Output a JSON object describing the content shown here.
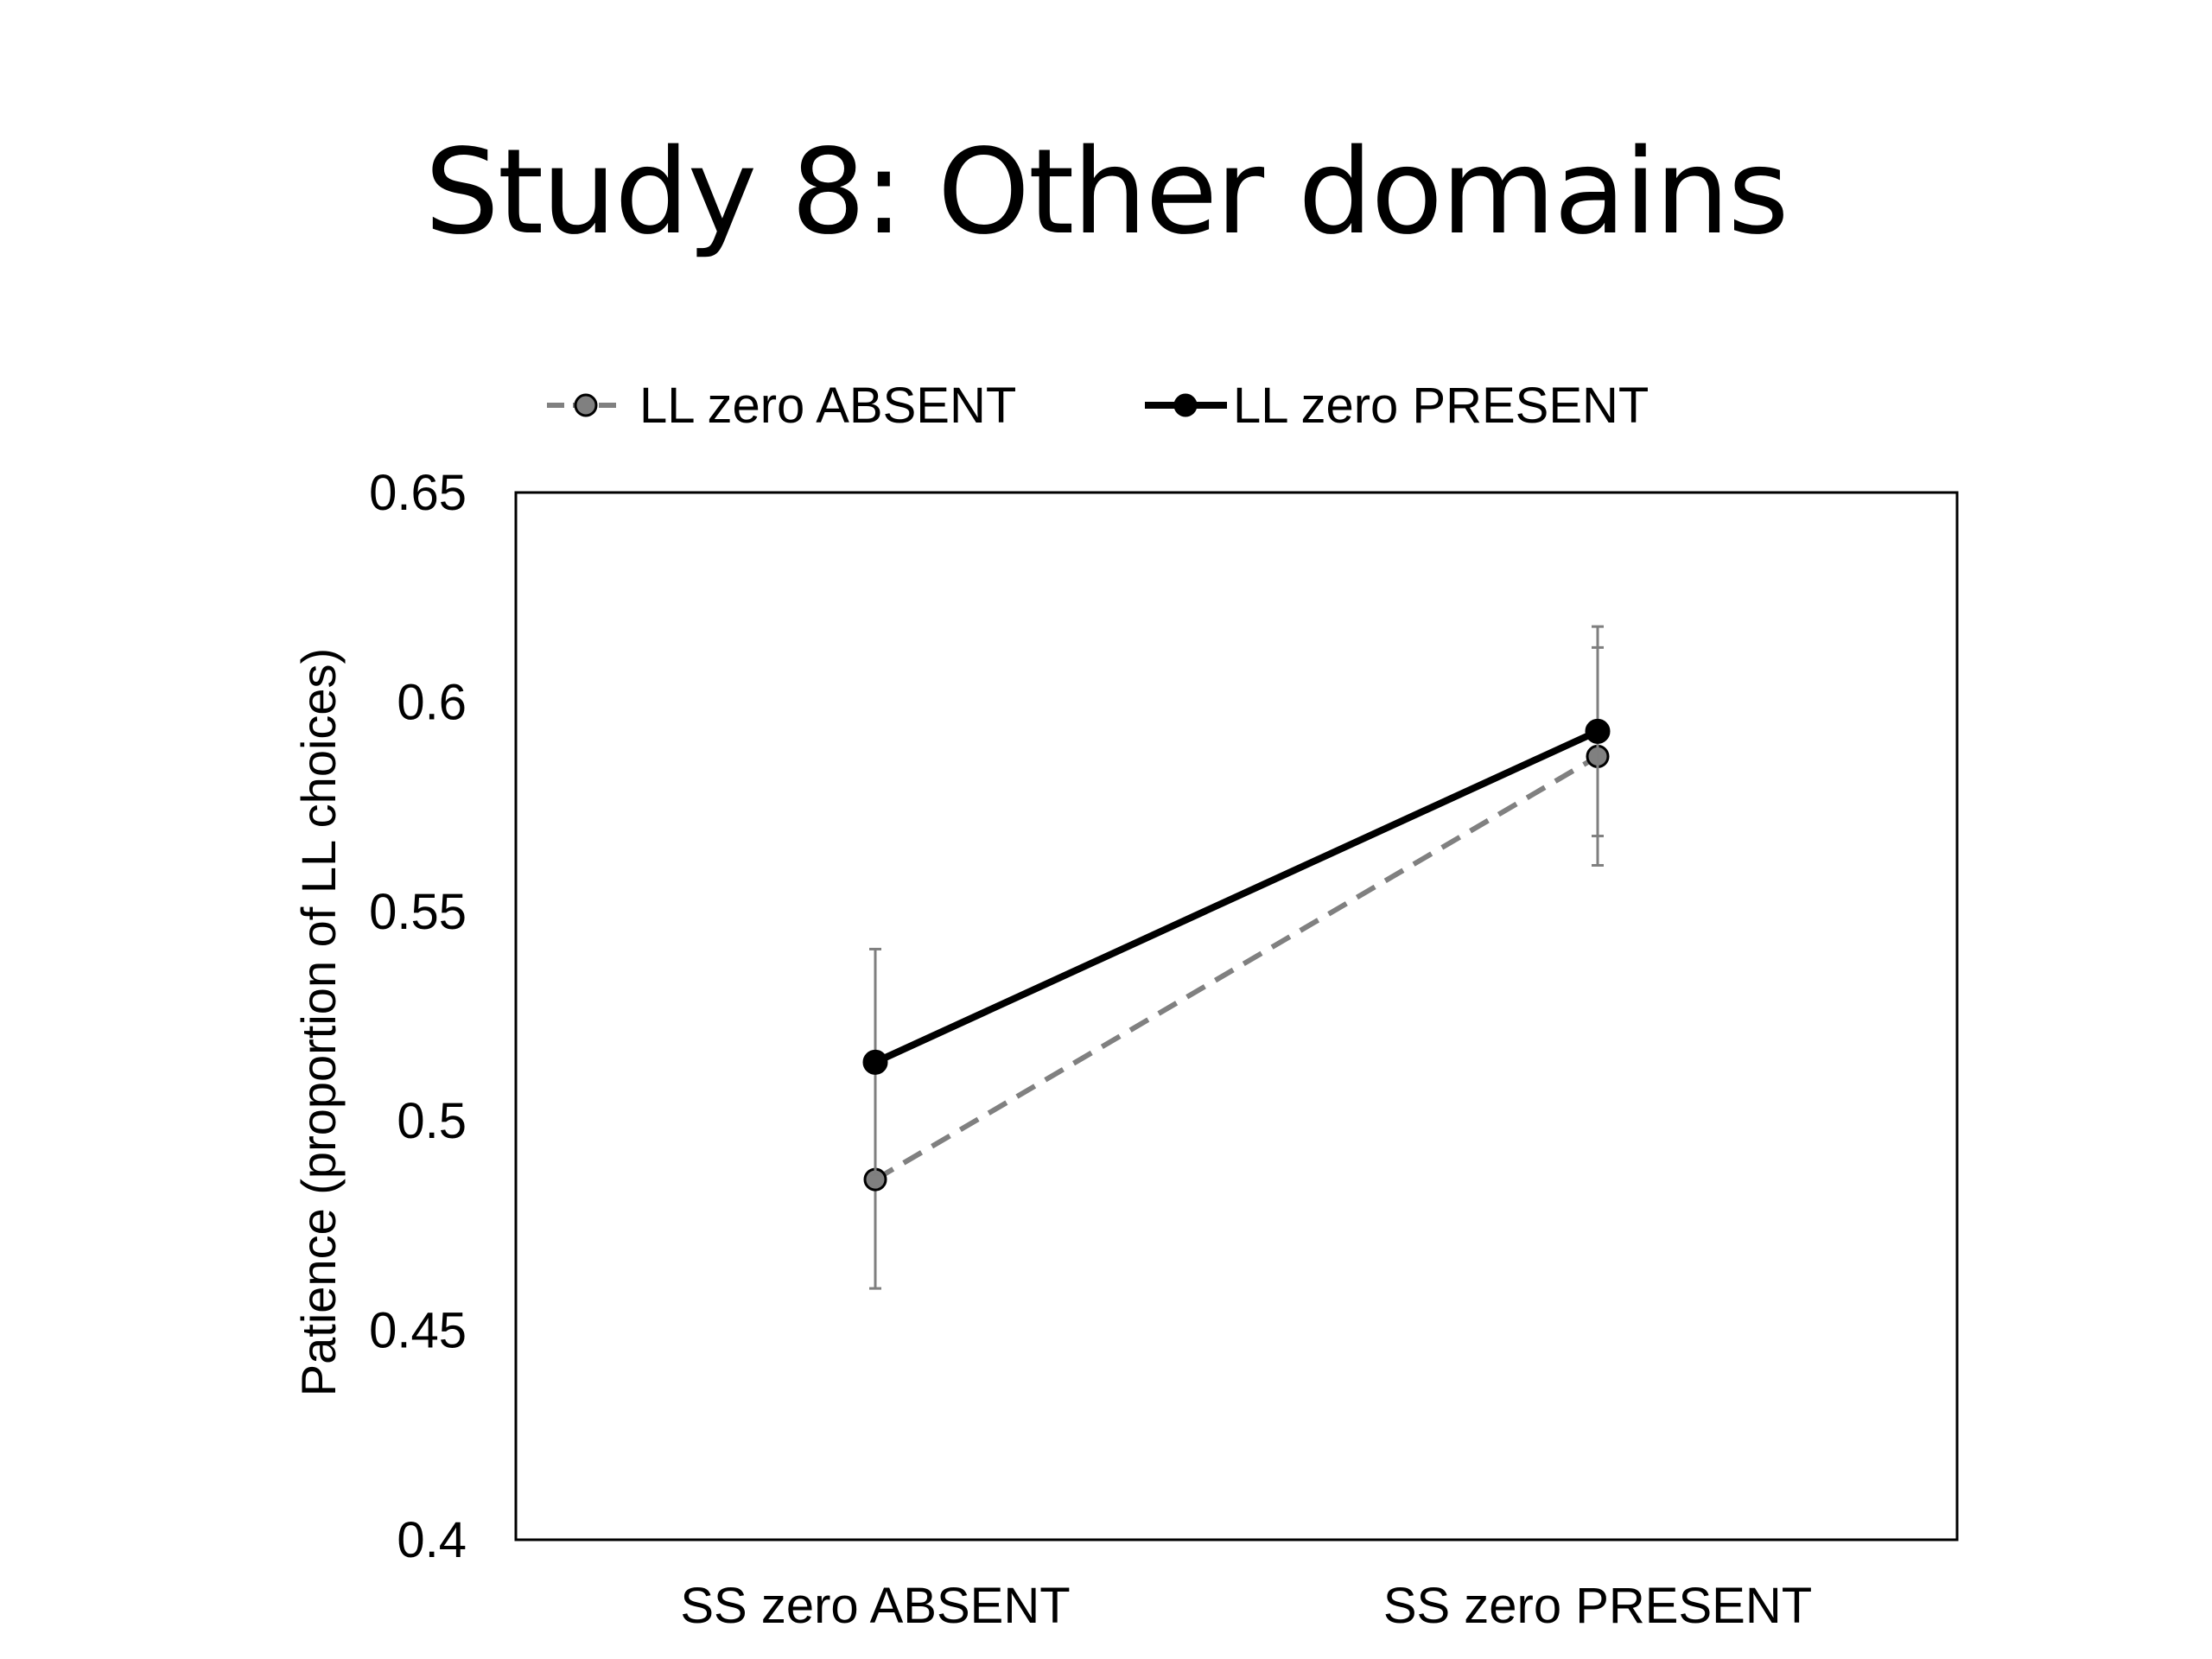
{
  "title": "Study 8: Other domains",
  "chart_data": {
    "type": "line",
    "categories": [
      "SS zero ABSENT",
      "SS zero PRESENT"
    ],
    "series": [
      {
        "name": "LL zero ABSENT",
        "values": [
          0.486,
          0.587
        ],
        "error_low": [
          0.46,
          0.561
        ],
        "error_high": [
          0.512,
          0.613
        ],
        "color": "#808080",
        "line_style": "dashed",
        "marker_fill": "#808080"
      },
      {
        "name": "LL zero PRESENT",
        "values": [
          0.514,
          0.593
        ],
        "error_low": [
          0.487,
          0.568
        ],
        "error_high": [
          0.541,
          0.618
        ],
        "color": "#000000",
        "line_style": "solid",
        "marker_fill": "#000000"
      }
    ],
    "ylabel": "Patience (proportion of LL choices)",
    "xlabel": "",
    "ylim": [
      0.4,
      0.65
    ],
    "yticks": [
      "0.4",
      "0.45",
      "0.5",
      "0.55",
      "0.6",
      "0.65"
    ],
    "grid": false,
    "legend_position": "top"
  }
}
